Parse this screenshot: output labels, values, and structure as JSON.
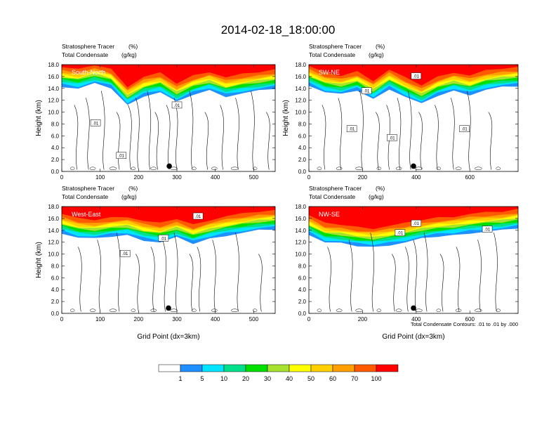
{
  "title": "2014-02-18_18:00:00",
  "chart_data": [
    {
      "type": "heatmap",
      "label": "South-North",
      "subtitle_left_1": "Stratosphere Tracer",
      "subtitle_right_1": "(%)",
      "subtitle_left_2": "Total Condensate",
      "subtitle_right_2": "(g/kg)",
      "ylabel": "Height (km)",
      "xlabel": "",
      "xlim": [
        0,
        556
      ],
      "ylim": [
        0,
        18
      ],
      "xticks": [
        0,
        100,
        200,
        300,
        400,
        500
      ],
      "yticks": [
        0,
        2,
        4,
        6,
        8,
        10,
        12,
        14,
        16,
        18
      ],
      "ytick_labels": [
        "0.0",
        "2.0",
        "4.0",
        "6.0",
        "8.0",
        "10.0",
        "12.0",
        "14.0",
        "16.0",
        "18.0"
      ],
      "marker_x": 280,
      "contour_labels": [
        {
          "text": ".01",
          "x": 88,
          "y": 8.2
        },
        {
          "text": ".01",
          "x": 300,
          "y": 11.2
        },
        {
          "text": ".01",
          "x": 155,
          "y": 2.7
        }
      ],
      "tracer_base_km": [
        14.2,
        13.8,
        14.6,
        13.9,
        11.0,
        12.6,
        13.2,
        11.5,
        12.8,
        13.5,
        12.5,
        13.0,
        13.4,
        13.8
      ],
      "condensate_contour_x": [
        0,
        40,
        70,
        110,
        150,
        180,
        200,
        230,
        250,
        280,
        300,
        340,
        380,
        420,
        460,
        500,
        540,
        556
      ]
    },
    {
      "type": "heatmap",
      "label": "SW-NE",
      "subtitle_left_1": "Stratosphere Tracer",
      "subtitle_right_1": "(%)",
      "subtitle_left_2": "Total Condensate",
      "subtitle_right_2": "(g/kg)",
      "ylabel": "Height (km)",
      "xlabel": "",
      "xlim": [
        0,
        780
      ],
      "ylim": [
        0,
        18
      ],
      "xticks": [
        0,
        200,
        400,
        600
      ],
      "yticks": [
        0,
        2,
        4,
        6,
        8,
        10,
        12,
        14,
        16,
        18
      ],
      "ytick_labels": [
        "0.0",
        "2.0",
        "4.0",
        "6.0",
        "8.0",
        "10.0",
        "12.0",
        "14.0",
        "16.0",
        "18.0"
      ],
      "marker_x": 390,
      "contour_labels": [
        {
          "text": ".01",
          "x": 160,
          "y": 7.2
        },
        {
          "text": ".01",
          "x": 400,
          "y": 16.1
        },
        {
          "text": ".01",
          "x": 310,
          "y": 5.7
        },
        {
          "text": ".01",
          "x": 580,
          "y": 7.2
        },
        {
          "text": ".01",
          "x": 215,
          "y": 13.6
        }
      ],
      "tracer_base_km": [
        14.4,
        13.2,
        12.8,
        13.5,
        12.0,
        13.8,
        12.4,
        11.2,
        12.6,
        13.4,
        12.8,
        13.6,
        14.0,
        14.2
      ],
      "condensate_contour_x": [
        0,
        60,
        120,
        200,
        260,
        300,
        340,
        380,
        420,
        480,
        540,
        600,
        680,
        780
      ]
    },
    {
      "type": "heatmap",
      "label": "West-East",
      "subtitle_left_1": "Stratosphere Tracer",
      "subtitle_right_1": "(%)",
      "subtitle_left_2": "Total Condensate",
      "subtitle_right_2": "(g/kg)",
      "ylabel": "Height (km)",
      "xlabel": "Grid Point (dx=3km)",
      "xlim": [
        0,
        556
      ],
      "ylim": [
        0,
        18
      ],
      "xticks": [
        0,
        100,
        200,
        300,
        400,
        500
      ],
      "yticks": [
        0,
        2,
        4,
        6,
        8,
        10,
        12,
        14,
        16,
        18
      ],
      "ytick_labels": [
        "0.0",
        "2.0",
        "4.0",
        "6.0",
        "8.0",
        "10.0",
        "12.0",
        "14.0",
        "16.0",
        "18.0"
      ],
      "marker_x": 278,
      "contour_labels": [
        {
          "text": ".01",
          "x": 165,
          "y": 10.1
        },
        {
          "text": ".01",
          "x": 265,
          "y": 12.7
        },
        {
          "text": ".01",
          "x": 355,
          "y": 16.4
        }
      ],
      "tracer_base_km": [
        13.4,
        12.6,
        12.4,
        12.8,
        13.0,
        12.2,
        11.8,
        12.6,
        11.6,
        12.4,
        13.0,
        13.4,
        13.8,
        14.0
      ],
      "condensate_contour_x": [
        0,
        50,
        100,
        150,
        200,
        240,
        270,
        300,
        340,
        360,
        400,
        460,
        520,
        556
      ]
    },
    {
      "type": "heatmap",
      "label": "NW-SE",
      "subtitle_left_1": "Stratosphere Tracer",
      "subtitle_right_1": "(%)",
      "subtitle_left_2": "Total Condensate",
      "subtitle_right_2": "(g/kg)",
      "ylabel": "",
      "xlabel": "Grid Point (dx=3km)",
      "xlim": [
        0,
        780
      ],
      "ylim": [
        0,
        18
      ],
      "xticks": [
        0,
        200,
        400,
        600
      ],
      "yticks": [
        0,
        2,
        4,
        6,
        8,
        10,
        12,
        14,
        16,
        18
      ],
      "ytick_labels": [
        "0.0",
        "2.0",
        "4.0",
        "6.0",
        "8.0",
        "10.0",
        "12.0",
        "14.0",
        "16.0",
        "18.0"
      ],
      "marker_x": 390,
      "contour_labels": [
        {
          "text": ".01",
          "x": 400,
          "y": 15.2
        },
        {
          "text": ".01",
          "x": 340,
          "y": 13.6
        },
        {
          "text": ".01",
          "x": 665,
          "y": 14.2
        }
      ],
      "tracer_base_km": [
        13.2,
        11.8,
        11.6,
        11.2,
        11.0,
        11.4,
        11.8,
        12.4,
        12.8,
        13.0,
        13.4,
        13.6,
        13.8,
        14.2
      ],
      "condensate_contour_x": [
        0,
        80,
        160,
        240,
        320,
        370,
        400,
        440,
        500,
        560,
        640,
        700,
        780
      ]
    }
  ],
  "contour_note": "Total Condensate Contours: .01 to .01 by .000",
  "legend": {
    "type": "colorbar",
    "labels": [
      "1",
      "5",
      "10",
      "20",
      "30",
      "40",
      "50",
      "60",
      "70",
      "100"
    ],
    "colors": [
      "#ffffff",
      "#1e90ff",
      "#00e5ff",
      "#00e08a",
      "#00e000",
      "#a6e22e",
      "#ffff00",
      "#ffd000",
      "#ff9f00",
      "#ff5a00",
      "#ff0000"
    ]
  }
}
